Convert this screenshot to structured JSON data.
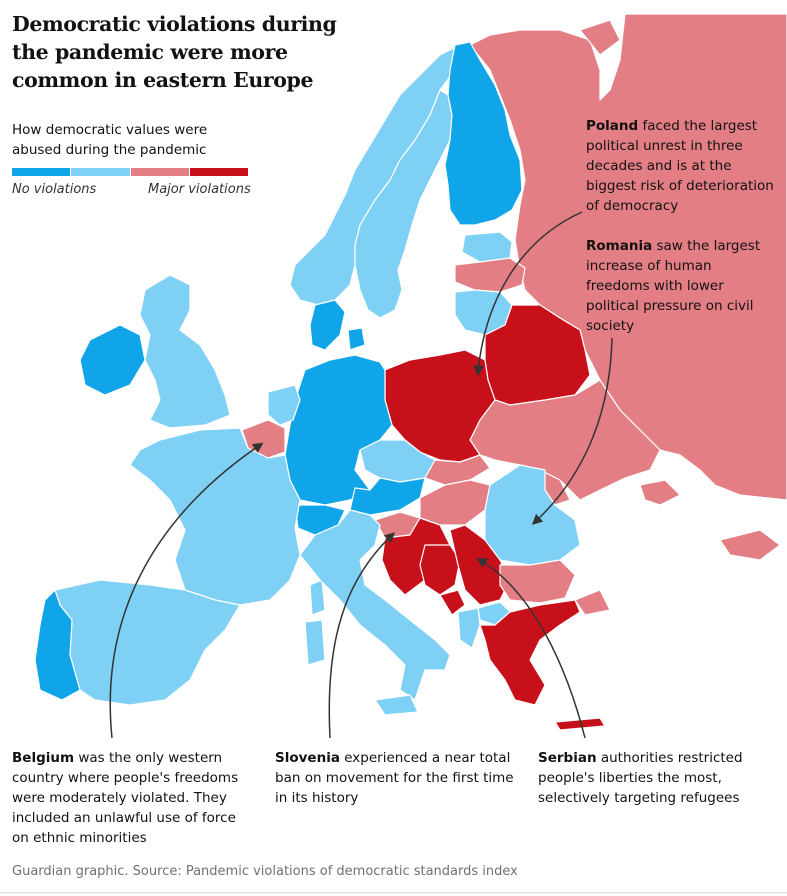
{
  "title": "Democratic violations during the pandemic were more common in eastern Europe",
  "legend": {
    "title": "How democratic values were abused during the pandemic",
    "low_label": "No violations",
    "high_label": "Major violations",
    "colors": [
      "#0fa5e8",
      "#7fd0f5",
      "#e27e84",
      "#c7101a"
    ]
  },
  "annotations": {
    "poland": {
      "name": "Poland",
      "text": " faced the largest political unrest in three decades and is at the biggest risk of deterioration of democracy"
    },
    "romania": {
      "name": "Romania",
      "text": " saw the largest increase of human freedoms with lower political pressure on civil society"
    },
    "belgium": {
      "name": "Belgium",
      "text": " was the only western country where people's freedoms were moderately violated. They included an unlawful use of force on ethnic minorities"
    },
    "slovenia": {
      "name": "Slovenia",
      "text": " experienced a near total ban on movement for the first time in its history"
    },
    "serbia": {
      "name": "Serbian",
      "text": " authorities restricted people's liberties the most, selectively targeting refugees"
    }
  },
  "source": "Guardian graphic. Source: Pandemic violations of democratic standards index",
  "countries": {
    "no_violations": [
      "Denmark",
      "Finland",
      "Ireland",
      "Germany",
      "Portugal",
      "Austria",
      "Switzerland"
    ],
    "minor_violations": [
      "Norway",
      "Sweden",
      "United Kingdom",
      "Spain",
      "France",
      "Netherlands",
      "Italy",
      "Czechia",
      "Lithuania",
      "Estonia",
      "Romania",
      "Sardinia",
      "Albania",
      "North Macedonia"
    ],
    "moderate_violations": [
      "Russia",
      "Belgium",
      "Latvia",
      "Ukraine",
      "Slovakia",
      "Hungary",
      "Moldova",
      "Bulgaria",
      "Slovenia",
      "Georgia"
    ],
    "major_violations": [
      "Poland",
      "Belarus",
      "Croatia",
      "Serbia",
      "Bosnia and Herzegovina",
      "Montenegro",
      "Greece"
    ]
  }
}
